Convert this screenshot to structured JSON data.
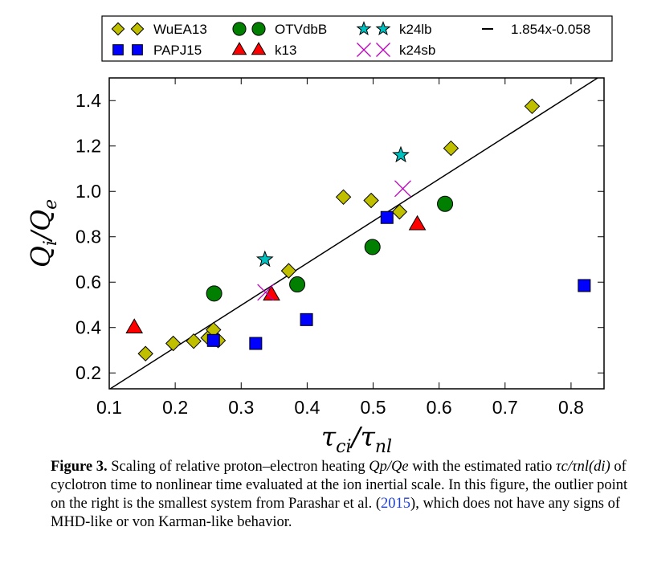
{
  "chart_data": {
    "type": "scatter",
    "xlabel": "τci/τnl",
    "ylabel": "Qi/Qe",
    "xlim": [
      0.1,
      0.85
    ],
    "ylim": [
      0.13,
      1.5
    ],
    "xticks": [
      0.1,
      0.2,
      0.3,
      0.4,
      0.5,
      0.6,
      0.7,
      0.8
    ],
    "xtick_labels": [
      "0.1",
      "0.2",
      "0.3",
      "0.4",
      "0.5",
      "0.6",
      "0.7",
      "0.8"
    ],
    "yticks": [
      0.2,
      0.4,
      0.6,
      0.8,
      1.0,
      1.2,
      1.4
    ],
    "ytick_labels": [
      "0.2",
      "0.4",
      "0.6",
      "0.8",
      "1.0",
      "1.2",
      "1.4"
    ],
    "grid": false,
    "legend_position": "top, above plot",
    "series": [
      {
        "name": "WuEA13",
        "marker": "diamond",
        "color": "#bfbf00",
        "x": [
          0.155,
          0.197,
          0.228,
          0.25,
          0.258,
          0.265,
          0.372,
          0.455,
          0.497,
          0.54,
          0.618,
          0.741
        ],
        "y": [
          0.285,
          0.33,
          0.34,
          0.355,
          0.39,
          0.343,
          0.65,
          0.975,
          0.96,
          0.91,
          1.19,
          1.375
        ]
      },
      {
        "name": "PAPJ15",
        "marker": "square",
        "color": "#0000ff",
        "x": [
          0.258,
          0.322,
          0.399,
          0.521,
          0.82
        ],
        "y": [
          0.343,
          0.33,
          0.435,
          0.885,
          0.585
        ]
      },
      {
        "name": "OTVdbB",
        "marker": "circle",
        "color": "#007f00",
        "x": [
          0.259,
          0.385,
          0.499,
          0.609
        ],
        "y": [
          0.55,
          0.59,
          0.755,
          0.945
        ]
      },
      {
        "name": "k13",
        "marker": "triangle",
        "color": "#ff0000",
        "x": [
          0.138,
          0.346,
          0.567
        ],
        "y": [
          0.4,
          0.545,
          0.855
        ]
      },
      {
        "name": "k24lb",
        "marker": "star",
        "color": "#00bfbf",
        "x": [
          0.336,
          0.542
        ],
        "y": [
          0.7,
          1.16
        ]
      },
      {
        "name": "k24sb",
        "marker": "x",
        "color": "#bf00bf",
        "x": [
          0.337,
          0.545
        ],
        "y": [
          0.555,
          1.012
        ]
      },
      {
        "name": "1.854x-0.058",
        "type": "line",
        "color": "#000000",
        "slope": 1.854,
        "intercept": -0.058
      }
    ]
  },
  "caption": {
    "label": "Figure 3.",
    "text_1": "Scaling of relative proton–electron heating",
    "math_1": "Qp/Qe",
    "text_2": "with the estimated ratio",
    "math_2": "τc/τnl(di)",
    "text_3": "of cyclotron time to nonlinear time evaluated at the ion inertial scale. In this figure, the outlier point on the right is the smallest system from Parashar et al. (",
    "cite": "2015",
    "text_4": "), which does not have any signs of MHD-like or von Karman-like behavior."
  }
}
